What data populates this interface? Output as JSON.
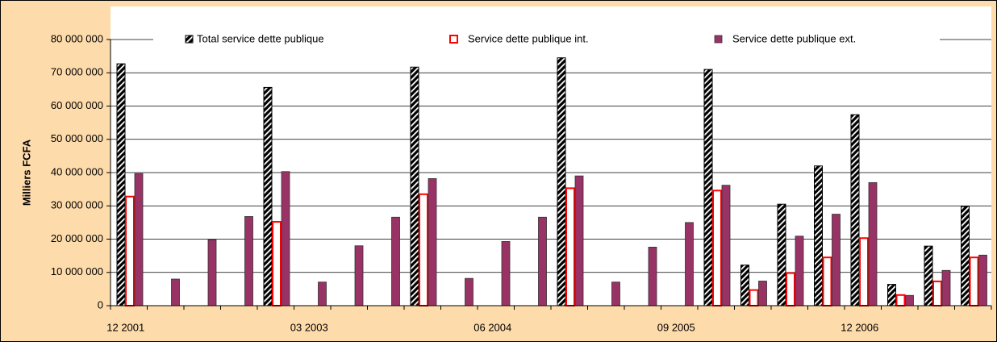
{
  "chart_data": {
    "type": "bar",
    "y_label": "Milliers FCFA",
    "categories": [
      "12 2001",
      null,
      null,
      null,
      null,
      "03 2003",
      null,
      null,
      null,
      null,
      "06 2004",
      null,
      null,
      null,
      null,
      "09 2005",
      null,
      null,
      null,
      null,
      "12 2006",
      null,
      null,
      null
    ],
    "series": [
      {
        "name": "Total service dette publique",
        "color": "#000000",
        "values": [
          72700000.0,
          0,
          0,
          0,
          65600000.0,
          0,
          0,
          0,
          71700000.0,
          0,
          0,
          0,
          74500000.0,
          0,
          0,
          0,
          71000000.0,
          12200000.0,
          30500000.0,
          42000000.0,
          57400000.0,
          6400000.0,
          17900000.0,
          29800000.0
        ]
      },
      {
        "name": "Service dette publique int.",
        "color": "#ff0000",
        "values": [
          32800000.0,
          0,
          0,
          0,
          25200000.0,
          0,
          0,
          0,
          33500000.0,
          0,
          0,
          0,
          35300000.0,
          0,
          0,
          0,
          34600000.0,
          4700000.0,
          9800000.0,
          14500000.0,
          20300000.0,
          3200000.0,
          7300000.0,
          14500000.0
        ]
      },
      {
        "name": "Service dette publique ext.",
        "color": "#993366",
        "values": [
          39700000.0,
          8000000.0,
          19800000.0,
          26800000.0,
          40300000.0,
          7100000.0,
          18000000.0,
          26600000.0,
          38200000.0,
          8200000.0,
          19300000.0,
          26600000.0,
          39000000.0,
          7100000.0,
          17600000.0,
          25000000.0,
          36200000.0,
          7400000.0,
          20900000.0,
          27500000.0,
          37000000.0,
          3100000.0,
          10600000.0,
          15200000.0
        ]
      }
    ],
    "ylim": [
      0,
      80000000
    ],
    "yticks": [
      0,
      {
        "value": 10000000,
        "label": "10 000 000"
      },
      {
        "value": 20000000,
        "label": "20 000 000"
      },
      {
        "value": 30000000,
        "label": "30 000 000"
      },
      {
        "value": 40000000,
        "label": "40 000 000"
      },
      {
        "value": 50000000,
        "label": "50 000 000"
      },
      {
        "value": 60000000,
        "label": "60 000 000"
      },
      {
        "value": 70000000,
        "label": "70 000 000"
      },
      {
        "value": 80000000,
        "label": "80 000 000"
      }
    ],
    "grid": true,
    "legend": "top"
  }
}
